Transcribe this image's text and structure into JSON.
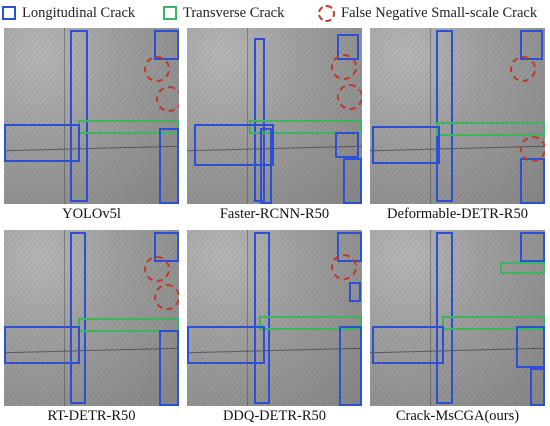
{
  "legend": {
    "longitudinal": "Longitudinal Crack",
    "transverse": "Transverse Crack",
    "false_negative": "False Negative Small-scale Crack"
  },
  "colors": {
    "longitudinal": "#2b50d6",
    "transverse": "#3bb55e",
    "false_negative": "#c0392b"
  },
  "panels": [
    {
      "caption": "YOLOv5l"
    },
    {
      "caption": "Faster-RCNN-R50"
    },
    {
      "caption": "Deformable-DETR-R50"
    },
    {
      "caption": "RT-DETR-R50"
    },
    {
      "caption": "DDQ-DETR-R50"
    },
    {
      "caption": "Crack-MsCGA(ours)"
    }
  ]
}
